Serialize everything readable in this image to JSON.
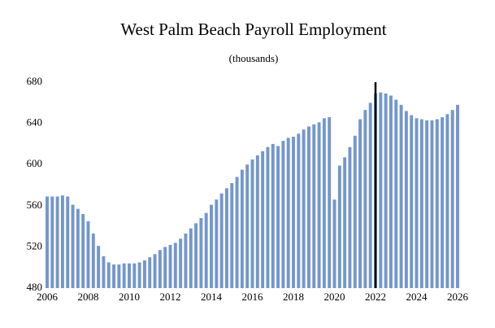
{
  "chart_data": {
    "type": "bar",
    "title": "West Palm Beach Payroll Employment",
    "subtitle": "(thousands)",
    "x": [
      2006,
      2006.25,
      2006.5,
      2006.75,
      2007,
      2007.25,
      2007.5,
      2007.75,
      2008,
      2008.25,
      2008.5,
      2008.75,
      2009,
      2009.25,
      2009.5,
      2009.75,
      2010,
      2010.25,
      2010.5,
      2010.75,
      2011,
      2011.25,
      2011.5,
      2011.75,
      2012,
      2012.25,
      2012.5,
      2012.75,
      2013,
      2013.25,
      2013.5,
      2013.75,
      2014,
      2014.25,
      2014.5,
      2014.75,
      2015,
      2015.25,
      2015.5,
      2015.75,
      2016,
      2016.25,
      2016.5,
      2016.75,
      2017,
      2017.25,
      2017.5,
      2017.75,
      2018,
      2018.25,
      2018.5,
      2018.75,
      2019,
      2019.25,
      2019.5,
      2019.75,
      2020,
      2020.25,
      2020.5,
      2020.75,
      2021,
      2021.25,
      2021.5,
      2021.75,
      2022,
      2022.25,
      2022.5,
      2022.75,
      2023,
      2023.25,
      2023.5,
      2023.75,
      2024,
      2024.25,
      2024.5,
      2024.75,
      2025,
      2025.25,
      2025.5,
      2025.75,
      2026
    ],
    "values": [
      569,
      569,
      569,
      570,
      569,
      561,
      557,
      552,
      545,
      533,
      521,
      511,
      505,
      503,
      503,
      504,
      504,
      504,
      505,
      507,
      510,
      513,
      517,
      520,
      522,
      524,
      528,
      533,
      538,
      543,
      548,
      553,
      561,
      566,
      572,
      577,
      582,
      588,
      595,
      600,
      605,
      609,
      613,
      617,
      620,
      618,
      623,
      626,
      627,
      630,
      634,
      637,
      639,
      641,
      645,
      646,
      566,
      599,
      607,
      617,
      628,
      644,
      653,
      660,
      669,
      670,
      669,
      667,
      663,
      658,
      652,
      648,
      645,
      644,
      643,
      643,
      644,
      646,
      649,
      653,
      658
    ],
    "color": "#7396cd",
    "xlim": [
      2006,
      2026
    ],
    "xticks": [
      2006,
      2008,
      2010,
      2012,
      2014,
      2016,
      2018,
      2020,
      2022,
      2024,
      2026
    ],
    "ylim": [
      480,
      680
    ],
    "yticks": [
      480,
      520,
      560,
      600,
      640,
      680
    ],
    "vline_x": 2022,
    "grid": false
  }
}
